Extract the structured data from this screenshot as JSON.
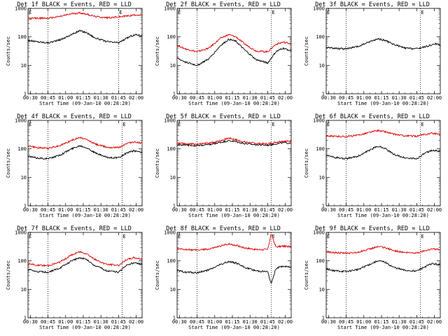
{
  "colors": {
    "events": "#000000",
    "lld": "#e00000"
  },
  "chart_data": [
    {
      "type": "line",
      "title": "Det 1f BLACK = Events, RED = LLD",
      "xlabel": "Start Time (09-Jan-10 00:28:20)",
      "ylabel": "Counts/sec",
      "yscale": "log",
      "ylim": [
        1,
        1000
      ],
      "x_ticks": [
        "00:30",
        "00:45",
        "01:00",
        "01:15",
        "01:30",
        "01:45",
        "02:00"
      ],
      "y_ticks": [
        "1",
        "10",
        "100",
        "1000"
      ],
      "markers": [
        "E",
        "E"
      ],
      "x_range_min": [
        28,
        125
      ],
      "dotted_lines_min": [
        45,
        105
      ],
      "series": [
        {
          "name": "Events",
          "color": "black",
          "x_min": [
            28,
            35,
            45,
            55,
            65,
            72,
            78,
            85,
            95,
            105,
            115,
            120,
            125
          ],
          "values": [
            75,
            68,
            62,
            78,
            120,
            165,
            140,
            92,
            68,
            62,
            105,
            120,
            110
          ]
        },
        {
          "name": "LLD",
          "color": "red",
          "x_min": [
            28,
            35,
            45,
            55,
            65,
            72,
            78,
            85,
            95,
            105,
            115,
            120,
            125
          ],
          "values": [
            440,
            450,
            450,
            520,
            650,
            700,
            630,
            520,
            470,
            500,
            560,
            600,
            570
          ]
        }
      ]
    },
    {
      "type": "line",
      "title": "Det 2f BLACK = Events, RED = LLD",
      "xlabel": "Start Time (09-Jan-10 00:28:20)",
      "ylabel": "Counts/sec",
      "yscale": "log",
      "ylim": [
        1,
        1000
      ],
      "x_ticks": [
        "00:30",
        "00:45",
        "01:00",
        "01:15",
        "01:30",
        "01:45",
        "02:00"
      ],
      "y_ticks": [
        "1",
        "10",
        "100",
        "1000"
      ],
      "markers": [
        "E",
        "E"
      ],
      "x_range_min": [
        28,
        125
      ],
      "dotted_lines_min": [
        45,
        108
      ],
      "series": [
        {
          "name": "Events",
          "color": "black",
          "x_min": [
            28,
            35,
            45,
            55,
            65,
            72,
            78,
            85,
            95,
            105,
            112,
            118,
            125
          ],
          "values": [
            18,
            13,
            10,
            17,
            50,
            82,
            70,
            36,
            16,
            12,
            30,
            40,
            33
          ]
        },
        {
          "name": "LLD",
          "color": "red",
          "x_min": [
            28,
            35,
            45,
            55,
            65,
            72,
            78,
            85,
            95,
            105,
            112,
            118,
            125
          ],
          "values": [
            50,
            38,
            30,
            40,
            90,
            120,
            100,
            58,
            32,
            30,
            55,
            65,
            58
          ]
        }
      ]
    },
    {
      "type": "line",
      "title": "Det 3f BLACK = Events, RED = LLD",
      "xlabel": "Start Time (09-Jan-10 00:28:20)",
      "ylabel": "Counts/sec",
      "yscale": "log",
      "ylim": [
        1,
        1000
      ],
      "x_ticks": [
        "00:30",
        "00:45",
        "01:00",
        "01:15",
        "01:30",
        "01:45",
        "02:00"
      ],
      "y_ticks": [
        "1",
        "10",
        "100",
        "1000"
      ],
      "markers": [
        "E",
        "E"
      ],
      "x_range_min": [
        28,
        125
      ],
      "dotted_lines_min": [
        45,
        108
      ],
      "series": [
        {
          "name": "Events",
          "color": "black",
          "x_min": [
            28,
            35,
            45,
            55,
            65,
            72,
            78,
            85,
            95,
            105,
            115,
            120,
            125
          ],
          "values": [
            42,
            40,
            38,
            45,
            68,
            85,
            75,
            55,
            40,
            38,
            48,
            58,
            52
          ]
        }
      ]
    },
    {
      "type": "line",
      "title": "Det 4f BLACK = Events, RED = LLD",
      "xlabel": "Start Time (09-Jan-10 00:28:20)",
      "ylabel": "Counts/sec",
      "yscale": "log",
      "ylim": [
        1,
        1000
      ],
      "x_ticks": [
        "00:30",
        "00:45",
        "01:00",
        "01:15",
        "01:30",
        "01:45",
        "02:00"
      ],
      "y_ticks": [
        "1",
        "10",
        "100",
        "1000"
      ],
      "markers": [
        "E",
        "E"
      ],
      "x_range_min": [
        28,
        125
      ],
      "dotted_lines_min": [
        45,
        108
      ],
      "series": [
        {
          "name": "Events",
          "color": "black",
          "x_min": [
            28,
            35,
            45,
            55,
            65,
            72,
            78,
            85,
            95,
            105,
            112,
            118,
            125
          ],
          "values": [
            55,
            48,
            45,
            60,
            100,
            130,
            110,
            72,
            50,
            48,
            72,
            85,
            78
          ]
        },
        {
          "name": "LLD",
          "color": "red",
          "x_min": [
            28,
            35,
            45,
            55,
            65,
            72,
            78,
            85,
            95,
            105,
            112,
            118,
            125
          ],
          "values": [
            130,
            110,
            105,
            130,
            200,
            250,
            210,
            150,
            115,
            110,
            155,
            175,
            160
          ]
        }
      ]
    },
    {
      "type": "line",
      "title": "Det 5f BLACK = Events, RED = LLD",
      "xlabel": "Start Time (09-Jan-10 00:28:20)",
      "ylabel": "Counts/sec",
      "yscale": "log",
      "ylim": [
        1,
        1000
      ],
      "x_ticks": [
        "00:30",
        "00:45",
        "01:00",
        "01:15",
        "01:30",
        "01:45",
        "02:00"
      ],
      "y_ticks": [
        "1",
        "10",
        "100",
        "1000"
      ],
      "markers": [
        "E",
        "E"
      ],
      "x_range_min": [
        28,
        125
      ],
      "dotted_lines_min": [
        45,
        108
      ],
      "series": [
        {
          "name": "Events",
          "color": "black",
          "x_min": [
            28,
            35,
            45,
            55,
            65,
            72,
            78,
            85,
            95,
            105,
            112,
            118,
            125
          ],
          "values": [
            140,
            135,
            130,
            140,
            170,
            195,
            180,
            155,
            140,
            135,
            150,
            165,
            158
          ]
        },
        {
          "name": "LLD",
          "color": "red",
          "x_min": [
            28,
            35,
            45,
            55,
            65,
            72,
            78,
            85,
            95,
            105,
            112,
            118,
            125
          ],
          "values": [
            160,
            150,
            145,
            158,
            195,
            240,
            210,
            175,
            155,
            150,
            172,
            190,
            180
          ]
        }
      ]
    },
    {
      "type": "line",
      "title": "Det 6f BLACK = Events, RED = LLD",
      "xlabel": "Start Time (09-Jan-10 00:28:20)",
      "ylabel": "Counts/sec",
      "yscale": "log",
      "ylim": [
        1,
        1000
      ],
      "x_ticks": [
        "00:30",
        "00:45",
        "01:00",
        "01:15",
        "01:30",
        "01:45",
        "02:00"
      ],
      "y_ticks": [
        "1",
        "10",
        "100",
        "1000"
      ],
      "markers": [
        "E",
        "E"
      ],
      "x_range_min": [
        28,
        125
      ],
      "dotted_lines_min": [
        45,
        108
      ],
      "series": [
        {
          "name": "Events",
          "color": "black",
          "x_min": [
            28,
            35,
            45,
            55,
            65,
            72,
            78,
            85,
            95,
            105,
            112,
            118,
            125
          ],
          "values": [
            60,
            50,
            45,
            55,
            90,
            125,
            105,
            65,
            48,
            45,
            70,
            90,
            80
          ]
        },
        {
          "name": "LLD",
          "color": "red",
          "x_min": [
            28,
            35,
            45,
            55,
            65,
            72,
            78,
            85,
            95,
            105,
            112,
            118,
            125
          ],
          "values": [
            290,
            275,
            270,
            300,
            380,
            440,
            400,
            330,
            285,
            280,
            320,
            355,
            330
          ]
        }
      ]
    },
    {
      "type": "line",
      "title": "Det 7f BLACK = Events, RED = LLD",
      "xlabel": "Start Time (09-Jan-10 00:28:20)",
      "ylabel": "Counts/sec",
      "yscale": "log",
      "ylim": [
        1,
        1000
      ],
      "x_ticks": [
        "00:30",
        "00:45",
        "01:00",
        "01:15",
        "01:30",
        "01:45",
        "02:00"
      ],
      "y_ticks": [
        "1",
        "10",
        "100",
        "1000"
      ],
      "markers": [
        "E",
        "E"
      ],
      "x_range_min": [
        28,
        125
      ],
      "dotted_lines_min": [
        45,
        108
      ],
      "series": [
        {
          "name": "Events",
          "color": "black",
          "x_min": [
            28,
            35,
            45,
            55,
            65,
            72,
            78,
            85,
            95,
            105,
            112,
            118,
            125
          ],
          "values": [
            50,
            42,
            40,
            55,
            100,
            130,
            110,
            68,
            45,
            40,
            72,
            85,
            75
          ]
        },
        {
          "name": "LLD",
          "color": "red",
          "x_min": [
            28,
            35,
            45,
            55,
            65,
            72,
            78,
            85,
            95,
            105,
            112,
            118,
            125
          ],
          "values": [
            80,
            70,
            68,
            90,
            160,
            210,
            180,
            110,
            75,
            70,
            110,
            130,
            115
          ]
        }
      ]
    },
    {
      "type": "line",
      "title": "Det 8f BLACK = Events, RED = LLD",
      "xlabel": "Start Time (09-Jan-10 00:28:20)",
      "ylabel": "Counts/sec",
      "yscale": "log",
      "ylim": [
        1,
        1000
      ],
      "x_ticks": [
        "00:30",
        "00:45",
        "01:00",
        "01:15",
        "01:30",
        "01:45",
        "02:00"
      ],
      "y_ticks": [
        "1",
        "10",
        "100",
        "1000"
      ],
      "markers": [
        "E",
        "E"
      ],
      "x_range_min": [
        28,
        125
      ],
      "dotted_lines_min": [
        45,
        108
      ],
      "series": [
        {
          "name": "Events",
          "color": "black",
          "x_min": [
            28,
            35,
            45,
            55,
            65,
            72,
            78,
            85,
            95,
            105,
            108,
            112,
            118,
            125
          ],
          "values": [
            45,
            40,
            38,
            48,
            75,
            95,
            85,
            60,
            45,
            42,
            15,
            55,
            65,
            60
          ]
        },
        {
          "name": "LLD",
          "color": "red",
          "x_min": [
            28,
            35,
            45,
            55,
            65,
            72,
            78,
            85,
            95,
            105,
            108,
            112,
            118,
            125
          ],
          "values": [
            260,
            250,
            240,
            260,
            330,
            400,
            350,
            290,
            250,
            250,
            900,
            310,
            330,
            310
          ]
        }
      ]
    },
    {
      "type": "line",
      "title": "Det 9f BLACK = Events, RED = LLD",
      "xlabel": "Start Time (09-Jan-10 00:28:20)",
      "ylabel": "Counts/sec",
      "yscale": "log",
      "ylim": [
        1,
        1000
      ],
      "x_ticks": [
        "00:30",
        "00:45",
        "01:00",
        "01:15",
        "01:30",
        "01:45",
        "02:00"
      ],
      "y_ticks": [
        "1",
        "10",
        "100",
        "1000"
      ],
      "markers": [
        "E",
        "E"
      ],
      "x_range_min": [
        28,
        125
      ],
      "dotted_lines_min": [
        45,
        108
      ],
      "series": [
        {
          "name": "Events",
          "color": "black",
          "x_min": [
            28,
            35,
            45,
            55,
            65,
            72,
            78,
            85,
            95,
            105,
            112,
            118,
            125
          ],
          "values": [
            52,
            45,
            42,
            50,
            75,
            100,
            90,
            60,
            46,
            44,
            62,
            80,
            72
          ]
        },
        {
          "name": "LLD",
          "color": "red",
          "x_min": [
            28,
            35,
            45,
            55,
            65,
            72,
            78,
            85,
            95,
            105,
            112,
            118,
            125
          ],
          "values": [
            210,
            195,
            185,
            200,
            260,
            320,
            290,
            230,
            195,
            190,
            230,
            265,
            245
          ]
        }
      ]
    }
  ]
}
